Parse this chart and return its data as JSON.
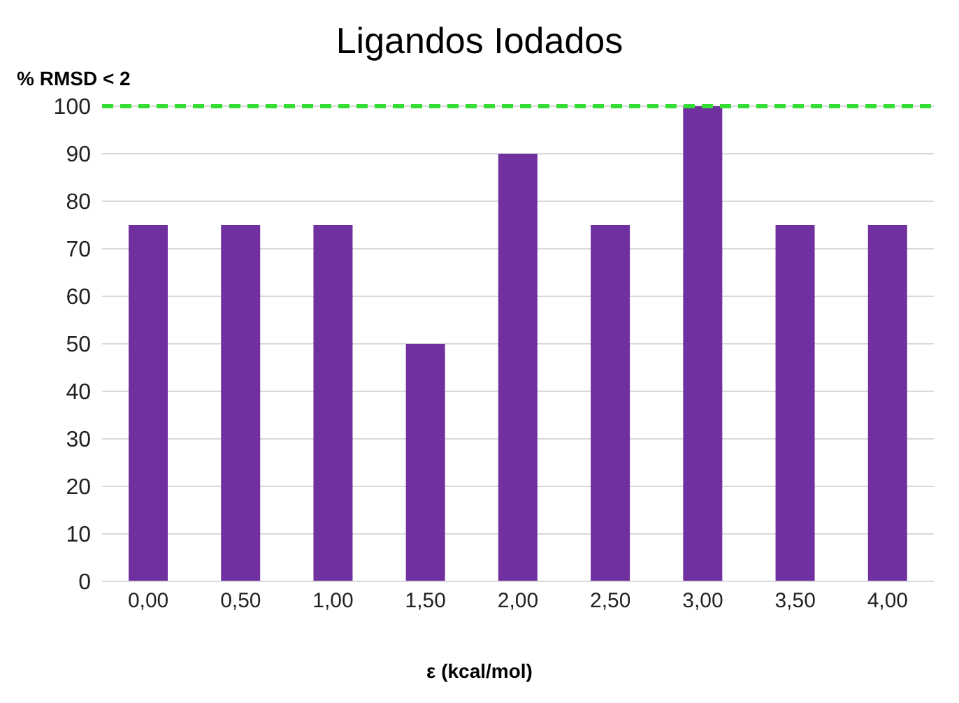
{
  "chart_data": {
    "type": "bar",
    "title": "Ligandos Iodados",
    "ylabel": "% RMSD < 2",
    "xlabel": "ε  (kcal/mol)",
    "categories": [
      "0,00",
      "0,50",
      "1,00",
      "1,50",
      "2,00",
      "2,50",
      "3,00",
      "3,50",
      "4,00"
    ],
    "values": [
      75,
      75,
      75,
      50,
      90,
      75,
      100,
      75,
      75
    ],
    "color": "#7030a0",
    "ylim": [
      0,
      100
    ],
    "yticks": [
      0,
      10,
      20,
      30,
      40,
      50,
      60,
      70,
      80,
      90,
      100
    ],
    "grid": "y",
    "ref_lines": [
      {
        "axis": "y",
        "value": 100,
        "color": "#33dd33",
        "line_style": "dashed"
      }
    ]
  }
}
